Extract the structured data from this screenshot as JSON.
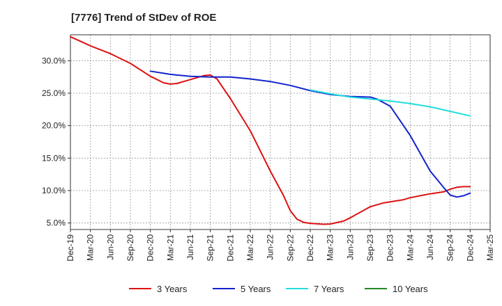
{
  "chart_data": {
    "type": "line",
    "title": "[7776]  Trend of StDev of ROE",
    "xlabel": "",
    "ylabel": "",
    "x_ticks": [
      "Dec-19",
      "Mar-20",
      "Jun-20",
      "Sep-20",
      "Dec-20",
      "Mar-21",
      "Jun-21",
      "Sep-21",
      "Dec-21",
      "Mar-22",
      "Jun-22",
      "Sep-22",
      "Dec-22",
      "Mar-23",
      "Jun-23",
      "Sep-23",
      "Dec-23",
      "Mar-24",
      "Jun-24",
      "Sep-24",
      "Dec-24",
      "Mar-25"
    ],
    "y_ticks": [
      "5.0%",
      "10.0%",
      "15.0%",
      "20.0%",
      "25.0%",
      "30.0%"
    ],
    "y_tick_values": [
      5,
      10,
      15,
      20,
      25,
      30
    ],
    "ylim": [
      4,
      34
    ],
    "grid": true,
    "legend_position": "bottom",
    "series": [
      {
        "name": "3 Years",
        "color": "#dd1111",
        "x": [
          "Dec-19",
          "Mar-20",
          "Jun-20",
          "Sep-20",
          "Dec-20",
          "Feb-21",
          "Mar-21",
          "Apr-21",
          "Jun-21",
          "Aug-21",
          "Sep-21",
          "Oct-21",
          "Dec-21",
          "Mar-22",
          "Jun-22",
          "Aug-22",
          "Sep-22",
          "Oct-22",
          "Nov-22",
          "Dec-22",
          "Feb-23",
          "Mar-23",
          "May-23",
          "Jun-23",
          "Sep-23",
          "Nov-23",
          "Dec-23",
          "Feb-24",
          "Mar-24",
          "May-24",
          "Jun-24",
          "Aug-24",
          "Sep-24",
          "Oct-24",
          "Nov-24",
          "Dec-24"
        ],
        "values": [
          33.7,
          32.3,
          31.1,
          29.6,
          27.6,
          26.6,
          26.4,
          26.5,
          27.1,
          27.7,
          27.8,
          27.2,
          24.2,
          19.2,
          13.0,
          9.2,
          6.9,
          5.6,
          5.1,
          4.95,
          4.8,
          4.85,
          5.3,
          5.8,
          7.5,
          8.1,
          8.25,
          8.6,
          8.9,
          9.3,
          9.5,
          9.8,
          10.2,
          10.5,
          10.6,
          10.6
        ]
      },
      {
        "name": "5 Years",
        "color": "#1122cc",
        "x": [
          "Dec-20",
          "Mar-21",
          "Jun-21",
          "Sep-21",
          "Dec-21",
          "Mar-22",
          "Jun-22",
          "Sep-22",
          "Dec-22",
          "Mar-23",
          "Jun-23",
          "Sep-23",
          "Oct-23",
          "Dec-23",
          "Mar-24",
          "Jun-24",
          "Aug-24",
          "Sep-24",
          "Oct-24",
          "Nov-24",
          "Dec-24"
        ],
        "values": [
          28.4,
          27.9,
          27.6,
          27.5,
          27.5,
          27.2,
          26.8,
          26.2,
          25.4,
          24.8,
          24.5,
          24.4,
          24.1,
          23.0,
          18.5,
          13.0,
          10.5,
          9.3,
          9.0,
          9.2,
          9.6
        ]
      },
      {
        "name": "7 Years",
        "color": "#22dddd",
        "x": [
          "Dec-22",
          "Mar-23",
          "Jun-23",
          "Sep-23",
          "Dec-23",
          "Mar-24",
          "Jun-24",
          "Sep-24",
          "Dec-24"
        ],
        "values": [
          25.5,
          24.9,
          24.4,
          24.1,
          23.8,
          23.4,
          22.9,
          22.2,
          21.5
        ]
      },
      {
        "name": "10 Years",
        "color": "#228822",
        "x": [],
        "values": []
      }
    ]
  }
}
